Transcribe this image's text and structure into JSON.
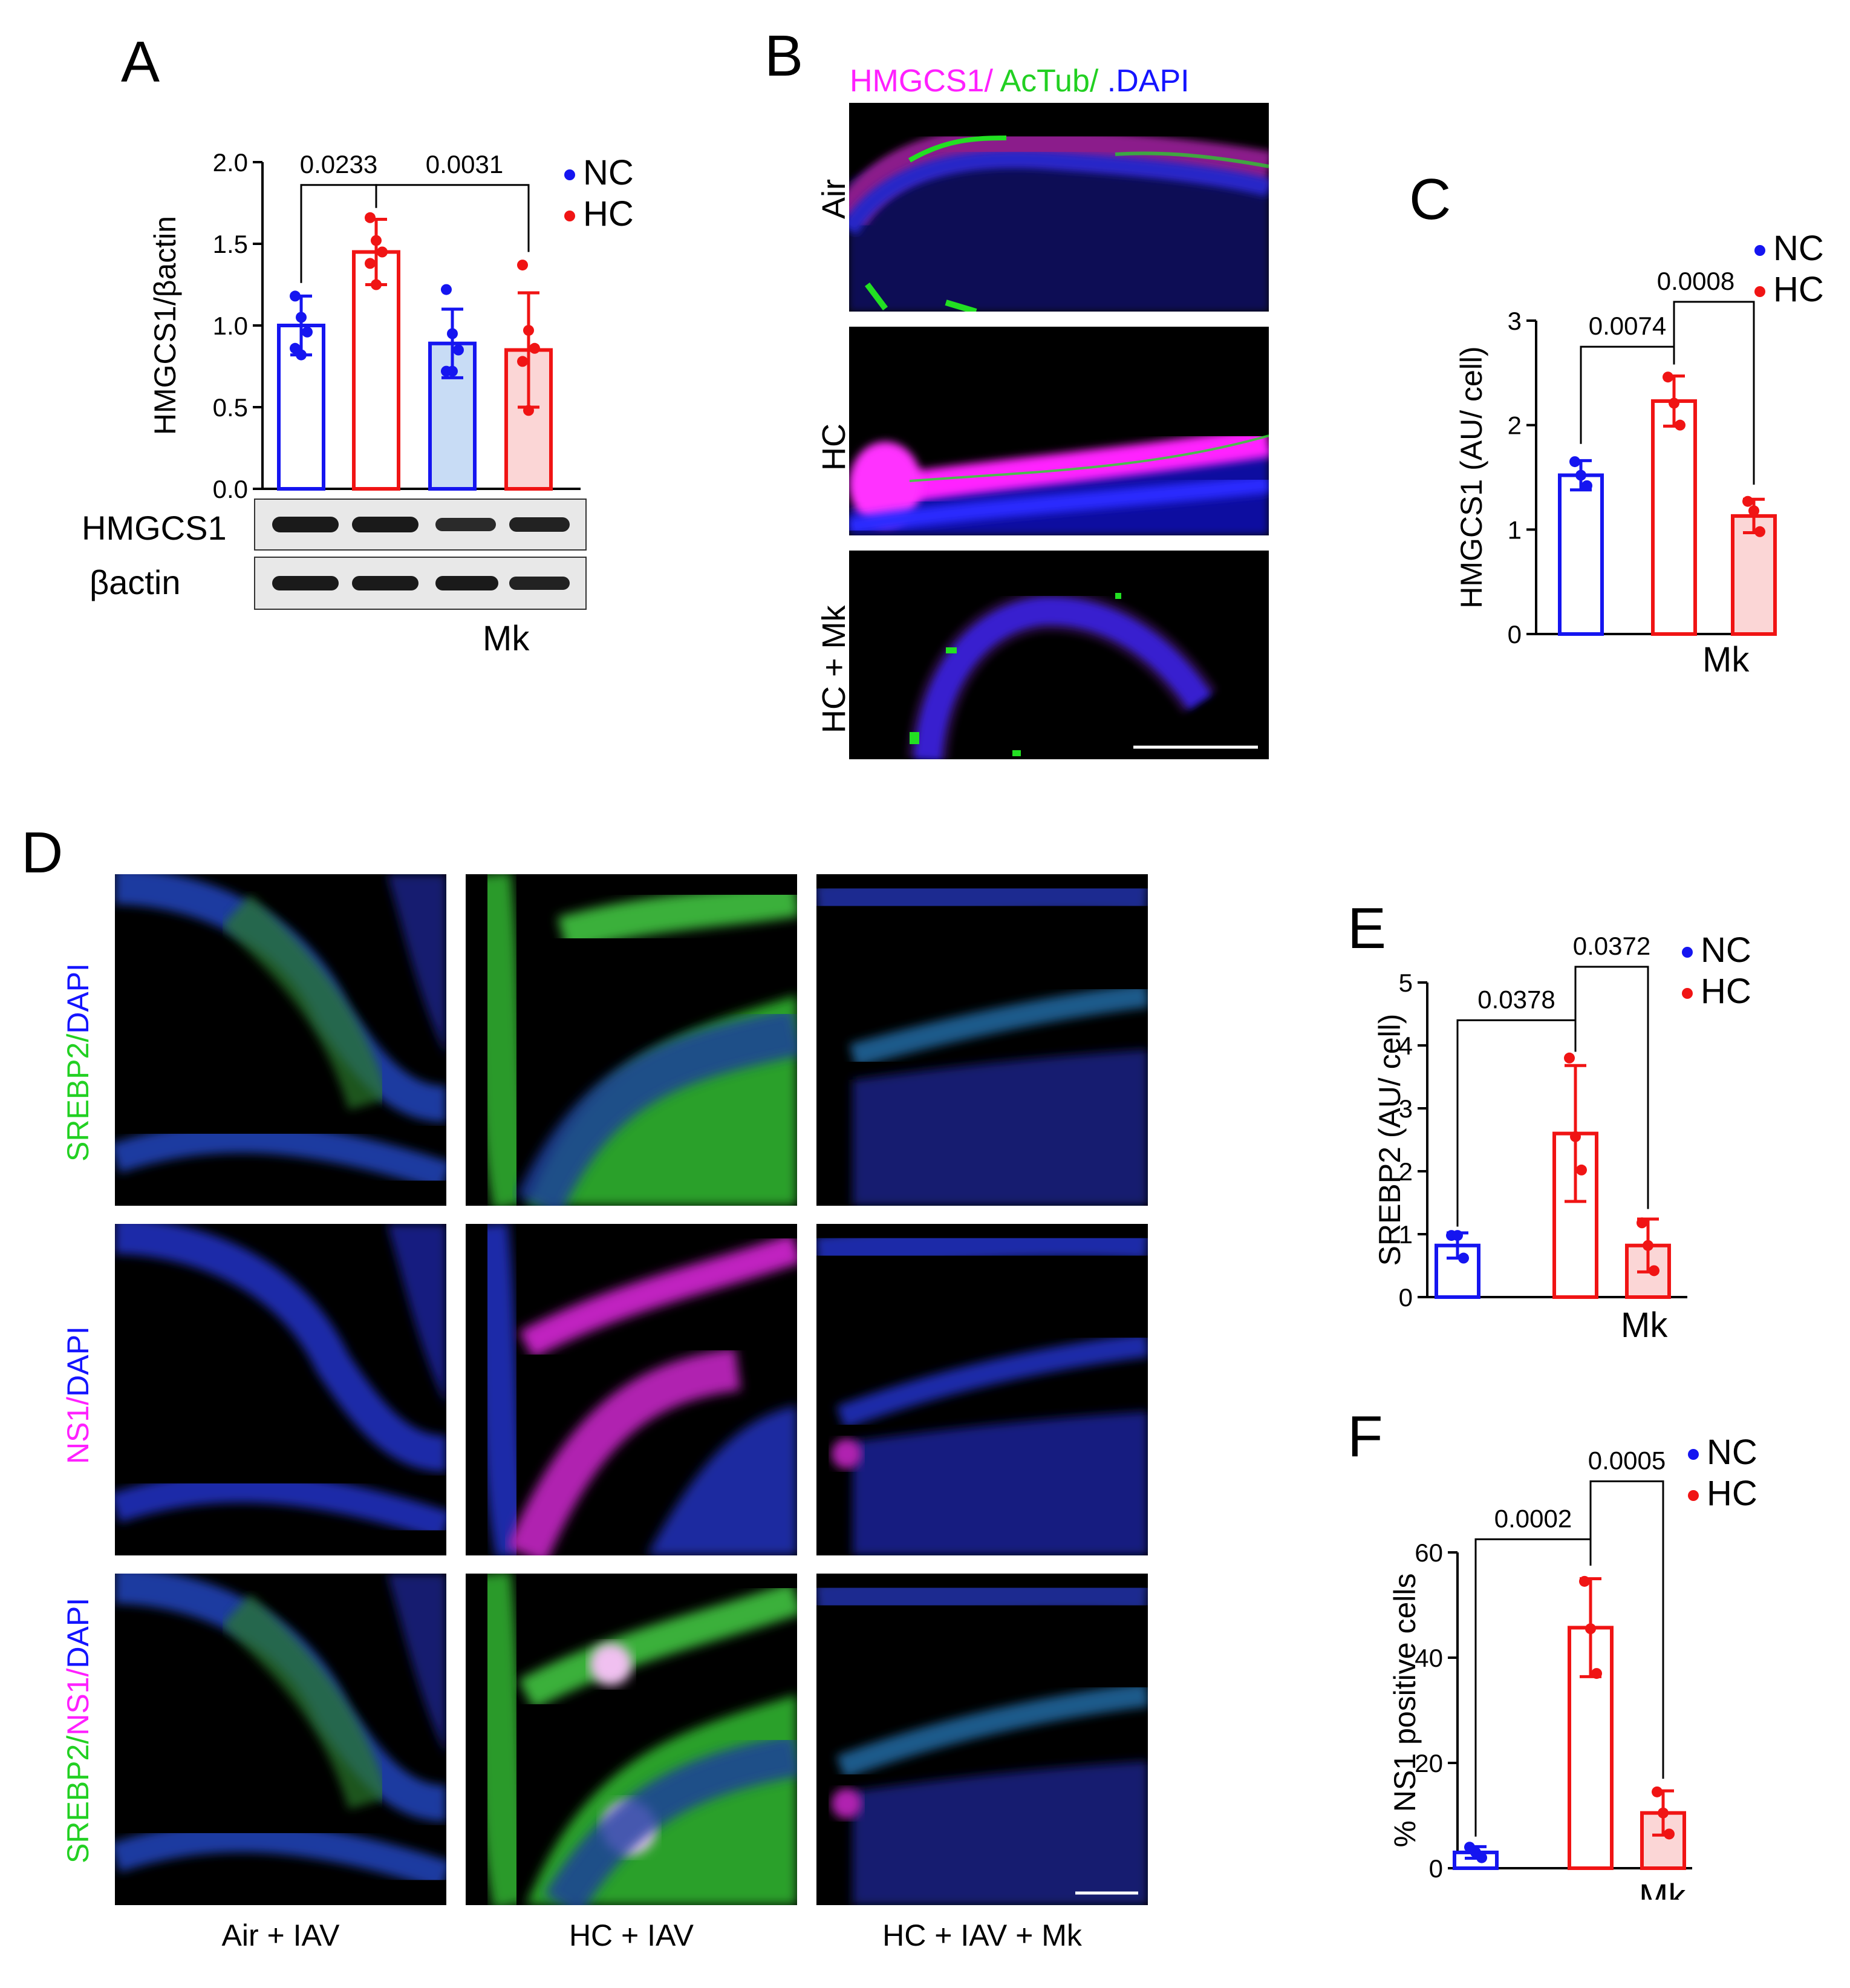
{
  "colors": {
    "nc": "#1515f0",
    "hc": "#f01414",
    "nc_fill": "#c8dcf5",
    "hc_fill": "#fbd6d6",
    "magenta": "#ff20ff",
    "green": "#22e022",
    "blue": "#1414ff"
  },
  "panelA": {
    "letter": "A",
    "blot_labels": [
      "HMGCS1",
      "βactin"
    ],
    "mk_label": "Mk",
    "chart_data": {
      "type": "bar",
      "categories": [
        "NC",
        "HC",
        "NC Mk",
        "HC Mk"
      ],
      "values": [
        1.0,
        1.45,
        0.89,
        0.85
      ],
      "errors": [
        0.18,
        0.2,
        0.21,
        0.35
      ],
      "points": [
        [
          1.18,
          1.05,
          0.96,
          0.86,
          0.82
        ],
        [
          1.66,
          1.52,
          1.45,
          1.38,
          1.25
        ],
        [
          1.22,
          0.95,
          0.85,
          0.72,
          0.72
        ],
        [
          1.37,
          0.97,
          0.86,
          0.78,
          0.48
        ]
      ],
      "ylabel": "HMGCS1/βactin",
      "ylim": [
        0,
        2.0
      ],
      "yticks": [
        "0.0",
        "0.5",
        "1.0",
        "1.5",
        "2.0"
      ],
      "brackets": [
        "0.0233",
        "0.0031"
      ],
      "legend": [
        "NC",
        "HC"
      ]
    }
  },
  "panelB": {
    "letter": "B",
    "title": [
      "HMGCS1/",
      "AcTub/",
      ".DAPI"
    ],
    "rows": [
      "Air",
      "HC",
      "HC + Mk"
    ]
  },
  "panelC": {
    "letter": "C",
    "mk_label": "Mk",
    "chart_data": {
      "type": "bar",
      "categories": [
        "NC",
        "HC",
        "HC Mk"
      ],
      "values": [
        1.52,
        2.23,
        1.13
      ],
      "errors": [
        0.14,
        0.24,
        0.16
      ],
      "points": [
        [
          1.65,
          1.52,
          1.42
        ],
        [
          2.46,
          2.21,
          2.0
        ],
        [
          1.27,
          1.18,
          0.98
        ]
      ],
      "ylabel": "HMGCS1 (AU/ cell)",
      "ylim": [
        0,
        3
      ],
      "yticks": [
        "0",
        "1",
        "2",
        "3"
      ],
      "brackets": [
        "0.0074",
        "0.0008"
      ],
      "legend": [
        "NC",
        "HC"
      ]
    }
  },
  "panelD": {
    "letter": "D",
    "rows": [
      [
        "SREBP2/",
        "DAPI"
      ],
      [
        "NS1/",
        "DAPI"
      ],
      [
        "SREBP2/",
        "NS1/",
        "DAPI"
      ]
    ],
    "cols": [
      "Air + IAV",
      "HC + IAV",
      "HC + IAV + Mk"
    ]
  },
  "panelE": {
    "letter": "E",
    "mk_label": "Mk",
    "chart_data": {
      "type": "bar",
      "categories": [
        "NC",
        "HC",
        "HC Mk"
      ],
      "values": [
        0.82,
        2.6,
        0.82
      ],
      "errors": [
        0.2,
        1.08,
        0.42
      ],
      "points": [
        [
          0.98,
          0.98,
          0.62
        ],
        [
          3.8,
          2.55,
          2.02
        ],
        [
          1.18,
          0.82,
          0.42
        ]
      ],
      "ylabel": "SREBP2 (AU/ cell)",
      "ylim": [
        0,
        5
      ],
      "yticks": [
        "0",
        "1",
        "2",
        "3",
        "4",
        "5"
      ],
      "brackets": [
        "0.0378",
        "0.0372"
      ],
      "legend": [
        "NC",
        "HC"
      ]
    }
  },
  "panelF": {
    "letter": "F",
    "mk_label": "Mk",
    "chart_data": {
      "type": "bar",
      "categories": [
        "NC",
        "HC",
        "HC Mk"
      ],
      "values": [
        3.0,
        45.7,
        10.5
      ],
      "errors": [
        1.1,
        9.3,
        4.2
      ],
      "points": [
        [
          4.0,
          3.0,
          2.0
        ],
        [
          54.5,
          45.5,
          37.0
        ],
        [
          14.5,
          10.5,
          6.5
        ]
      ],
      "ylabel": "% NS1 positive cells",
      "ylim": [
        0,
        60
      ],
      "yticks": [
        "0",
        "20",
        "40",
        "60"
      ],
      "brackets": [
        "0.0002",
        "0.0005"
      ],
      "legend": [
        "NC",
        "HC"
      ]
    }
  }
}
